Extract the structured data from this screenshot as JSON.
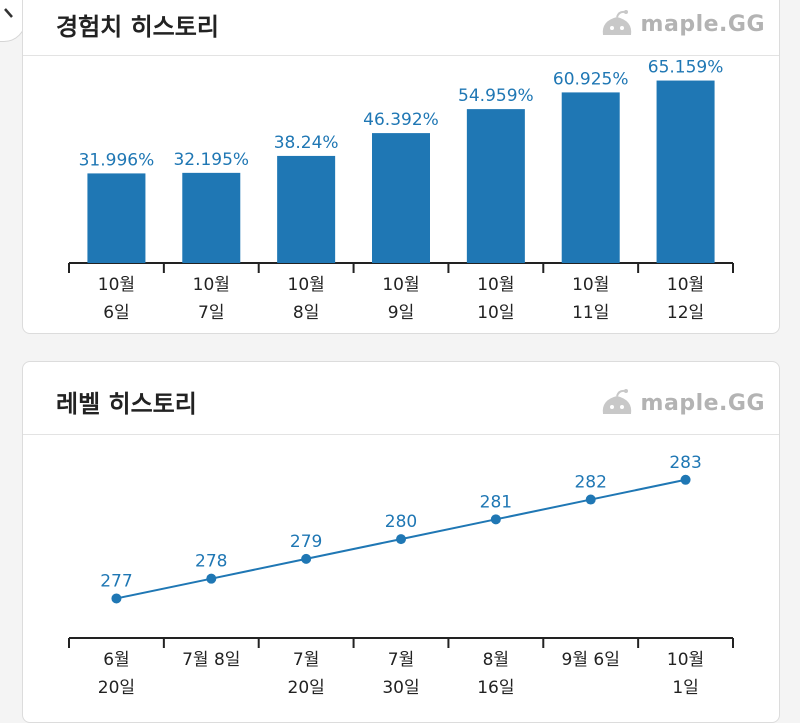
{
  "exp_card": {
    "title": "경험치 히스토리",
    "logo_text": "maple.GG"
  },
  "level_card": {
    "title": "레벨 히스토리",
    "logo_text": "maple.GG"
  },
  "colors": {
    "accent": "#1f77b4",
    "label": "#1f77b4",
    "axis": "#222222"
  },
  "icons": {
    "logo": "maple-slime-logo-icon",
    "edge_tab": "chevron-tab-icon"
  },
  "chart_data": [
    {
      "type": "bar",
      "title": "경험치 히스토리",
      "categories": [
        [
          "10월",
          "6일"
        ],
        [
          "10월",
          "7일"
        ],
        [
          "10월",
          "8일"
        ],
        [
          "10월",
          "9일"
        ],
        [
          "10월",
          "10일"
        ],
        [
          "10월",
          "11일"
        ],
        [
          "10월",
          "12일"
        ]
      ],
      "values": [
        31.996,
        32.195,
        38.24,
        46.392,
        54.959,
        60.925,
        65.159
      ],
      "data_labels": [
        "31.996%",
        "32.195%",
        "38.24%",
        "46.392%",
        "54.959%",
        "60.925%",
        "65.159%"
      ],
      "ylim": [
        0,
        70
      ],
      "grid": false,
      "legend": "none"
    },
    {
      "type": "line",
      "title": "레벨 히스토리",
      "categories": [
        [
          "6월",
          "20일"
        ],
        [
          "7월 8일"
        ],
        [
          "7월",
          "20일"
        ],
        [
          "7월",
          "30일"
        ],
        [
          "8월",
          "16일"
        ],
        [
          "9월 6일"
        ],
        [
          "10월",
          "1일"
        ]
      ],
      "values": [
        277,
        278,
        279,
        280,
        281,
        282,
        283
      ],
      "data_labels": [
        "277",
        "278",
        "279",
        "280",
        "281",
        "282",
        "283"
      ],
      "ylim": [
        275,
        284
      ],
      "grid": false,
      "legend": "none"
    }
  ]
}
